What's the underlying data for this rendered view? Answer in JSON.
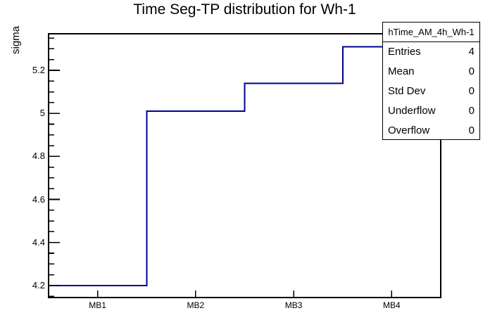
{
  "chart_data": {
    "type": "step-histogram",
    "title": "Time Seg-TP distribution for Wh-1",
    "xlabel": "",
    "ylabel": "sigma",
    "categories": [
      "MB1",
      "MB2",
      "MB3",
      "MB4"
    ],
    "values": [
      4.2,
      5.01,
      5.14,
      5.31
    ],
    "ylim": [
      4.144,
      5.37
    ],
    "y_major_ticks": [
      4.2,
      4.4,
      4.6,
      4.8,
      5.0,
      5.2
    ],
    "y_tick_labels": [
      "4.2",
      "4.4",
      "4.6",
      "4.8",
      "5",
      "5.2"
    ],
    "y_minor_step": 0.05,
    "grid": false,
    "line_color": "#00008f",
    "frame_color": "#000000",
    "background_color": "#ffffff"
  },
  "stats_box": {
    "header": "hTime_AM_4h_Wh-1",
    "rows": [
      {
        "label": "Entries",
        "value": "4"
      },
      {
        "label": "Mean",
        "value": "0"
      },
      {
        "label": "Std Dev",
        "value": "0"
      },
      {
        "label": "Underflow",
        "value": "0"
      },
      {
        "label": "Overflow",
        "value": "0"
      }
    ]
  }
}
